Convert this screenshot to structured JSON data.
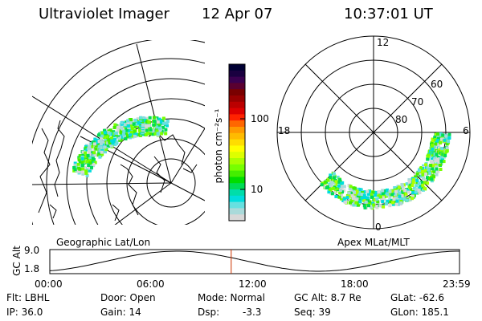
{
  "header": {
    "title": "Ultraviolet Imager",
    "date": "12 Apr 07",
    "time": "10:37:01 UT"
  },
  "colorbar": {
    "unit_label": "photon cm⁻²s⁻¹",
    "ticks": [
      "100",
      "10"
    ],
    "colors": [
      "#000033",
      "#1a0040",
      "#3a0050",
      "#5a0030",
      "#7a0000",
      "#990000",
      "#bb0000",
      "#dd0000",
      "#ff2200",
      "#ff6600",
      "#ff9900",
      "#ffbb00",
      "#ffdd00",
      "#ffff00",
      "#ddff00",
      "#aaff00",
      "#77ff00",
      "#44ee00",
      "#00dd00",
      "#00dd55",
      "#00ddaa",
      "#00dddd",
      "#66e0e0",
      "#aadada",
      "#d8d8d8"
    ]
  },
  "geo_map": {
    "label": "Geographic Lat/Lon"
  },
  "mlt_dial": {
    "label": "Apex MLat/MLT",
    "mlt_labels": {
      "top": "12",
      "left": "18",
      "right": "6",
      "bottom": "0"
    },
    "lat_labels": [
      "60",
      "70",
      "80"
    ]
  },
  "altitude_plot": {
    "ylabel": "GC Alt",
    "yticks": [
      "9.0",
      "1.8"
    ],
    "xticks": [
      "00:00",
      "06:00",
      "12:00",
      "18:00",
      "23:59"
    ],
    "marker_time_hours": 10.617,
    "marker_color": "#cc3300"
  },
  "footer": {
    "filter": "Flt: LBHL",
    "ip": "IP: 36.0",
    "door": "Door: Open",
    "gain": "Gain: 14",
    "mode": "Mode: Normal",
    "dsp_label": "Dsp:",
    "dsp_value": "-3.3",
    "gc_alt": "GC Alt: 8.7 Re",
    "seq": "Seq: 39",
    "glat": "GLat: -62.6",
    "glon": "GLon: 185.1"
  }
}
